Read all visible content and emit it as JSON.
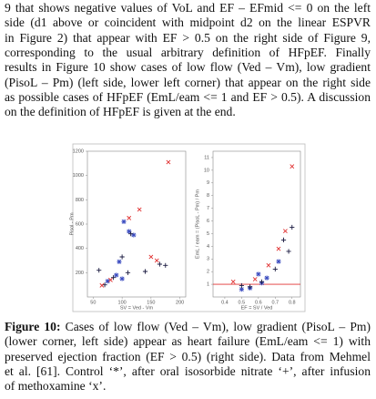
{
  "text": {
    "lines": [
      "9 that shows negative values of VoL and EF – EFmid <= 0 on the left",
      "side (d1 above or coincident with midpoint d2 on the linear ESPVR",
      "in Figure 2) that appear with EF > 0.5 on the right side of Figure 9,",
      "corresponding to the usual arbitrary definition of HFpEF. Finally",
      "results in Figure 10 show cases of low flow (Ved – Vm), low gradient",
      "(PisoL – Pm) (left side, lower left corner) that appear on the right side",
      "as possible cases of HFpEF (EmL/eam <= 1 and EF > 0.5). A discussion",
      "on the definition of HFpEF is given at the end."
    ]
  },
  "chart_data": [
    {
      "type": "scatter",
      "y_label": "Pisol - Pm",
      "x_label": "SV = Ved - Vm",
      "xlim": [
        40,
        210
      ],
      "xticks": [
        50,
        100,
        150,
        200
      ],
      "ylim": [
        0,
        1200
      ],
      "yticks": [
        200,
        400,
        600,
        800,
        1000,
        1200
      ],
      "series": [
        {
          "marker": "star",
          "color": "#3b4cc0",
          "x": [
            112,
            103,
            95,
            120,
            90,
            75,
            100
          ],
          "y": [
            540,
            620,
            290,
            510,
            180,
            130,
            150
          ]
        },
        {
          "marker": "plus",
          "color": "#1a1a40",
          "x": [
            60,
            70,
            85,
            110,
            140,
            165,
            175,
            115,
            100
          ],
          "y": [
            220,
            100,
            160,
            200,
            210,
            270,
            260,
            520,
            330
          ]
        },
        {
          "marker": "cross",
          "color": "#e03030",
          "x": [
            180,
            130,
            112,
            150,
            80,
            65,
            160
          ],
          "y": [
            1110,
            720,
            650,
            330,
            140,
            95,
            300
          ]
        }
      ]
    },
    {
      "type": "scatter",
      "y_label": "EmL / eam = (PisoL - Pm) / Pm",
      "x_label": "EF = SV / Ved",
      "xlim": [
        0.33,
        0.85
      ],
      "xticks": [
        0.4,
        0.5,
        0.6,
        0.7,
        0.8
      ],
      "ylim": [
        0,
        11.5
      ],
      "yticks": [
        1,
        2,
        3,
        4,
        5,
        6,
        7,
        8,
        9,
        10,
        11
      ],
      "threshold": 1,
      "threshold_color": "#e03030",
      "series": [
        {
          "marker": "star",
          "color": "#3b4cc0",
          "x": [
            0.62,
            0.55,
            0.65,
            0.5,
            0.72,
            0.6
          ],
          "y": [
            1.1,
            0.7,
            1.5,
            0.6,
            2.8,
            1.8
          ]
        },
        {
          "marker": "plus",
          "color": "#1a1a40",
          "x": [
            0.55,
            0.62,
            0.7,
            0.78,
            0.5,
            0.75,
            0.8
          ],
          "y": [
            0.8,
            1.2,
            2.2,
            3.6,
            0.9,
            4.5,
            5.5
          ]
        },
        {
          "marker": "cross",
          "color": "#e03030",
          "x": [
            0.8,
            0.76,
            0.72,
            0.66,
            0.45,
            0.58
          ],
          "y": [
            10.3,
            5.2,
            3.8,
            2.5,
            1.2,
            1.4
          ]
        }
      ]
    }
  ],
  "caption": {
    "label": "Figure 10:",
    "lines": [
      " Cases of low flow (Ved – Vm), low gradient (PisoL – Pm)",
      "(lower corner, left side) appear as heart failure (EmL/eam <= 1) with",
      "preserved ejection fraction (EF > 0.5) (right side). Data from Mehmel",
      "et al. [61]. Control ‘*’, after oral isosorbide nitrate ‘+’, after infusion",
      "of methoxamine ‘x’."
    ]
  }
}
